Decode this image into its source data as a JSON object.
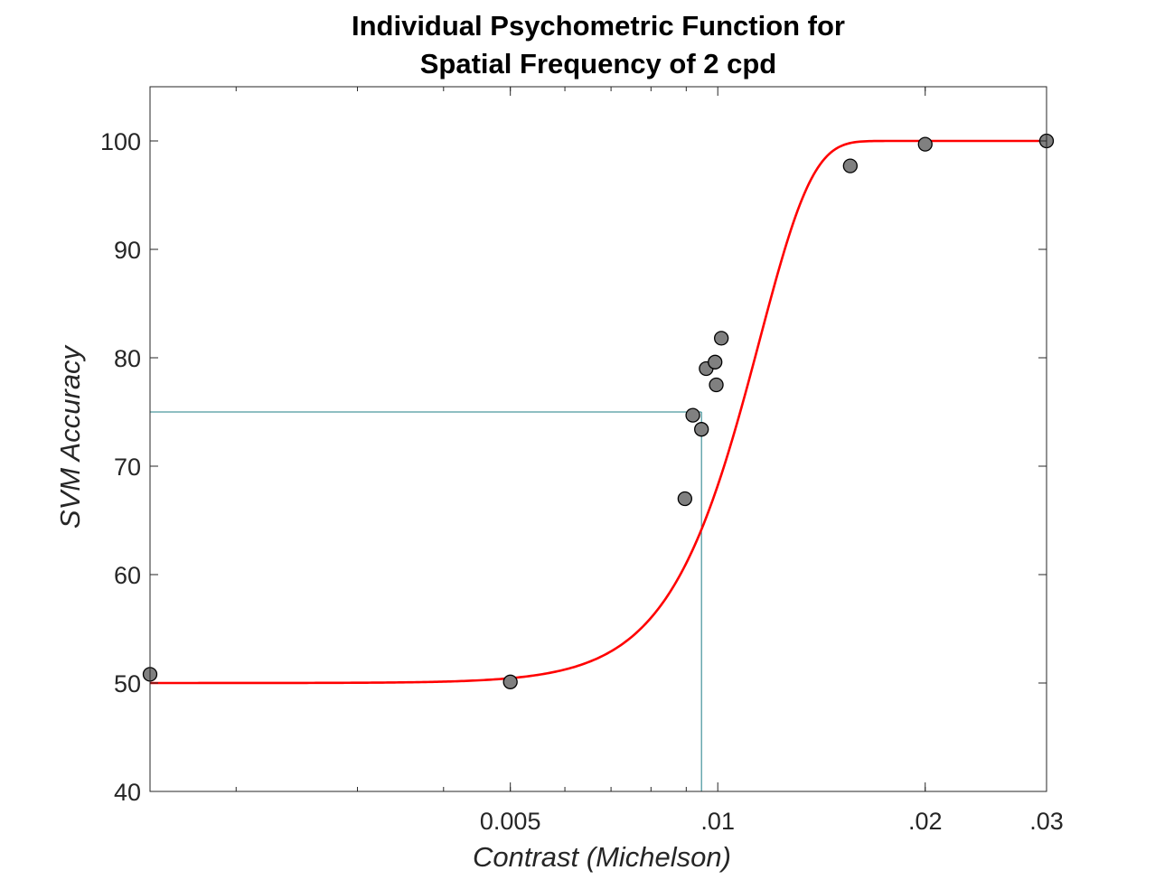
{
  "chart_data": {
    "type": "scatter",
    "title": [
      "Individual Psychometric Function for",
      "Spatial Frequency of 2 cpd"
    ],
    "xlabel": "Contrast (Michelson)",
    "ylabel": "SVM Accuracy",
    "xscale": "log",
    "xlim": [
      0.0015,
      0.03
    ],
    "ylim": [
      40,
      105
    ],
    "grid": false,
    "x_ticks": [
      {
        "value": 0.005,
        "label": "0.005"
      },
      {
        "value": 0.01,
        "label": ".01"
      },
      {
        "value": 0.02,
        "label": ".02"
      },
      {
        "value": 0.03,
        "label": ".03"
      }
    ],
    "y_ticks": [
      {
        "value": 40,
        "label": "40"
      },
      {
        "value": 50,
        "label": "50"
      },
      {
        "value": 60,
        "label": "60"
      },
      {
        "value": 70,
        "label": "70"
      },
      {
        "value": 80,
        "label": "80"
      },
      {
        "value": 90,
        "label": "90"
      },
      {
        "value": 100,
        "label": "100"
      }
    ],
    "series": [
      {
        "kind": "points",
        "color": "#808080",
        "x": [
          0.0015,
          0.005,
          0.00896,
          0.0092,
          0.00947,
          0.00962,
          0.00991,
          0.00995,
          0.01012,
          0.01557,
          0.02,
          0.03
        ],
        "y": [
          50.8,
          50.1,
          67.0,
          74.7,
          73.4,
          79.0,
          79.6,
          77.5,
          81.8,
          97.7,
          99.7,
          100.0
        ]
      },
      {
        "kind": "fit",
        "color": "#ff0000",
        "function": "weibull",
        "lower": 50,
        "upper": 100,
        "threshold": 0.0115,
        "slope": 5.66
      }
    ],
    "threshold_marker": {
      "color": "#1f7f86",
      "accuracy": 75,
      "contrast": 0.00947
    }
  }
}
